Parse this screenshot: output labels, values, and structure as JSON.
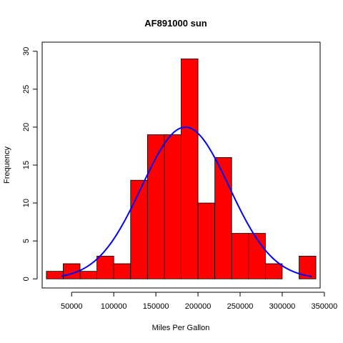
{
  "chart_data": {
    "type": "bar",
    "subtype": "histogram",
    "title": "AF891000 sun",
    "xlabel": "Miles Per Gallon",
    "ylabel": "Frequency",
    "bins": [
      {
        "x0": 20000,
        "x1": 40000,
        "count": 1
      },
      {
        "x0": 40000,
        "x1": 60000,
        "count": 2
      },
      {
        "x0": 60000,
        "x1": 80000,
        "count": 1
      },
      {
        "x0": 80000,
        "x1": 100000,
        "count": 3
      },
      {
        "x0": 100000,
        "x1": 120000,
        "count": 2
      },
      {
        "x0": 120000,
        "x1": 140000,
        "count": 13
      },
      {
        "x0": 140000,
        "x1": 160000,
        "count": 19
      },
      {
        "x0": 160000,
        "x1": 180000,
        "count": 19
      },
      {
        "x0": 180000,
        "x1": 200000,
        "count": 29
      },
      {
        "x0": 200000,
        "x1": 220000,
        "count": 10
      },
      {
        "x0": 220000,
        "x1": 240000,
        "count": 16
      },
      {
        "x0": 240000,
        "x1": 260000,
        "count": 6
      },
      {
        "x0": 260000,
        "x1": 280000,
        "count": 6
      },
      {
        "x0": 280000,
        "x1": 300000,
        "count": 2
      },
      {
        "x0": 300000,
        "x1": 320000,
        "count": 0
      },
      {
        "x0": 320000,
        "x1": 340000,
        "count": 3
      }
    ],
    "density_curve": {
      "mean": 185000,
      "sd": 52000,
      "peak_frequency": 20,
      "x_from": 38000,
      "x_to": 335000,
      "color": "#0000FF"
    },
    "bar_color": "#FF0000",
    "xlim": [
      15000,
      345000
    ],
    "ylim": [
      -1.2,
      31.2
    ],
    "xticks": [
      50000,
      100000,
      150000,
      200000,
      250000,
      300000,
      350000
    ],
    "xtick_labels": [
      "50000",
      "100000",
      "150000",
      "200000",
      "250000",
      "300000",
      "350000"
    ],
    "yticks": [
      0,
      5,
      10,
      15,
      20,
      25,
      30
    ],
    "ytick_labels": [
      "0",
      "5",
      "10",
      "15",
      "20",
      "25",
      "30"
    ],
    "grid": false,
    "legend": "none"
  }
}
